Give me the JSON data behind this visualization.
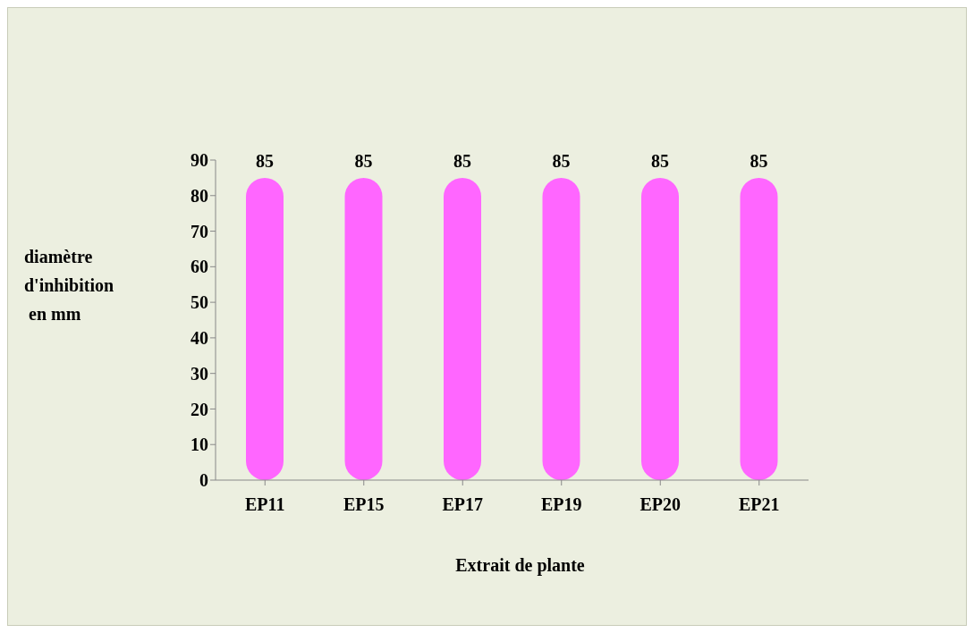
{
  "chart_data": {
    "type": "bar",
    "xlabel": "Extrait de plante",
    "ylabel": "diamètre\nd'inhibition\n en mm",
    "categories": [
      "EP11",
      "EP15",
      "EP17",
      "EP19",
      "EP20",
      "EP21"
    ],
    "values": [
      85,
      85,
      85,
      85,
      85,
      85
    ],
    "color": "#ff66ff",
    "ylim": [
      0,
      90
    ],
    "yticks": [
      0,
      10,
      20,
      30,
      40,
      50,
      60,
      70,
      80,
      90
    ],
    "grid": false,
    "data_labels": true
  }
}
